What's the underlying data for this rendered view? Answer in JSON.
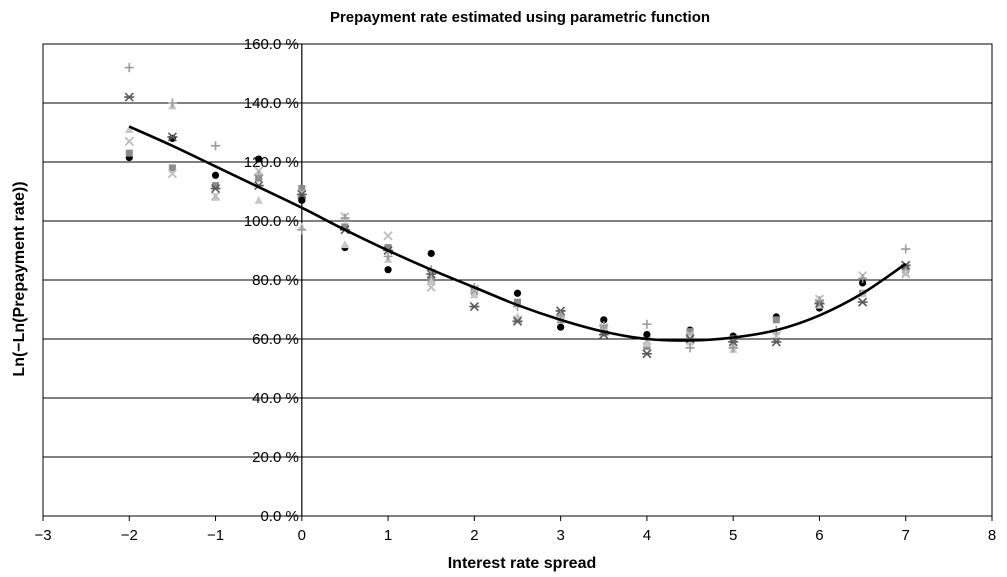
{
  "chart_data": {
    "type": "scatter",
    "title": "Prepayment rate estimated using parametric function",
    "xlabel": "Interest rate spread",
    "ylabel": "Ln(−Ln(Prepayment rate))",
    "xlim": [
      -3,
      8
    ],
    "ylim": [
      0,
      160
    ],
    "xticks": [
      -3,
      -2,
      -1,
      0,
      1,
      2,
      3,
      4,
      5,
      6,
      7,
      8
    ],
    "xtick_labels": [
      "−3",
      "−2",
      "−1",
      "0",
      "1",
      "2",
      "3",
      "4",
      "5",
      "6",
      "7",
      "8"
    ],
    "yticks": [
      0,
      20,
      40,
      60,
      80,
      100,
      120,
      140,
      160
    ],
    "ytick_labels": [
      "0.0 %",
      "20.0 %",
      "40.0 %",
      "60.0 %",
      "80.0 %",
      "100.0 %",
      "120.0 %",
      "140.0 %",
      "160.0 %"
    ],
    "grid": "horizontal",
    "legend": "none",
    "x": [
      -2,
      -1.5,
      -1,
      -0.5,
      0,
      0.5,
      1,
      1.5,
      2,
      2.5,
      3,
      3.5,
      4,
      4.5,
      5,
      5.5,
      6,
      6.5,
      7
    ],
    "series": [
      {
        "marker": "circle",
        "color": "#000000",
        "values": [
          121.5,
          128,
          115.5,
          121,
          107,
          91,
          83.5,
          89,
          76.5,
          75.5,
          64,
          66.5,
          61.5,
          63,
          61,
          67.5,
          70.5,
          79,
          83
        ]
      },
      {
        "marker": "square",
        "color": "#8c8c8c",
        "values": [
          123,
          118,
          112,
          114.5,
          111,
          98,
          91,
          80,
          76,
          72.5,
          66.5,
          63,
          57.5,
          62.5,
          60,
          66.5,
          72,
          75.5,
          84
        ]
      },
      {
        "marker": "triangle",
        "color": "#c8c8c8",
        "values": [
          131,
          139,
          108,
          107,
          98,
          92,
          87,
          79.5,
          75,
          67.5,
          67,
          62,
          58.5,
          59,
          56.5,
          62.5,
          71.5,
          75.5,
          82.5
        ]
      },
      {
        "marker": "x",
        "color": "#bdbdbd",
        "values": [
          127,
          116,
          108.5,
          117,
          109.5,
          101.5,
          95,
          77.5,
          77,
          66.5,
          68.5,
          64,
          59.5,
          61.5,
          58,
          61,
          73.5,
          81.5,
          82
        ]
      },
      {
        "marker": "star",
        "color": "#5a5a5a",
        "values": [
          142,
          128.5,
          111,
          112,
          109,
          97,
          90,
          82,
          71,
          66,
          69.5,
          61.5,
          55,
          60,
          59,
          59,
          72,
          72.5,
          85
        ]
      },
      {
        "marker": "plus",
        "color": "#9a9a9a",
        "values": [
          152,
          140,
          125.5,
          115.5,
          97,
          101,
          88,
          83.5,
          77.5,
          71,
          68,
          64.5,
          65,
          57,
          57,
          63,
          73,
          80.5,
          90.5
        ]
      }
    ],
    "fit_line": {
      "x": [
        -2,
        -1.5,
        -1,
        -0.5,
        0,
        0.5,
        1,
        1.5,
        2,
        2.5,
        3,
        3.5,
        4,
        4.5,
        5,
        5.5,
        6,
        6.5,
        7
      ],
      "y": [
        132,
        125.5,
        118.5,
        111.5,
        104.5,
        97,
        90,
        83.5,
        77.5,
        71.5,
        66.5,
        62.5,
        60,
        59.5,
        60.5,
        63,
        68,
        75.5,
        85.5
      ]
    }
  }
}
